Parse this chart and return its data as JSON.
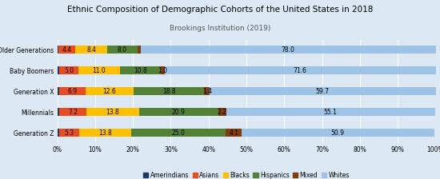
{
  "title": "Ethnic Composition of Demographic Cohorts of the United States in 2018",
  "subtitle": "Brookings Institution (2019)",
  "categories": [
    "Older Generations",
    "Baby Boomers",
    "Generation X",
    "Millennials",
    "Generation Z"
  ],
  "series": {
    "Amerindians": [
      0.4,
      0.6,
      0.6,
      0.6,
      0.5
    ],
    "Asians": [
      4.4,
      5.0,
      6.9,
      7.2,
      5.3
    ],
    "Blacks": [
      8.4,
      11.0,
      12.6,
      13.8,
      13.8
    ],
    "Hispanics": [
      8.0,
      10.8,
      18.8,
      20.9,
      25.0
    ],
    "Mixed": [
      0.8,
      1.0,
      1.4,
      2.2,
      4.1
    ],
    "Whites": [
      78.0,
      71.6,
      59.7,
      55.1,
      50.9
    ]
  },
  "colors": {
    "Amerindians": "#1f3864",
    "Asians": "#e84c23",
    "Blacks": "#ffc000",
    "Hispanics": "#538135",
    "Mixed": "#843c0c",
    "Whites": "#9dc3e6"
  },
  "xlim": [
    0,
    100
  ],
  "xticks": [
    0,
    10,
    20,
    30,
    40,
    50,
    60,
    70,
    80,
    90,
    100
  ],
  "background_color": "#dce9f5",
  "grid_color": "#ffffff",
  "title_fontsize": 7.5,
  "subtitle_fontsize": 6.5,
  "tick_fontsize": 5.5,
  "label_fontsize": 5.5,
  "legend_fontsize": 5.5
}
